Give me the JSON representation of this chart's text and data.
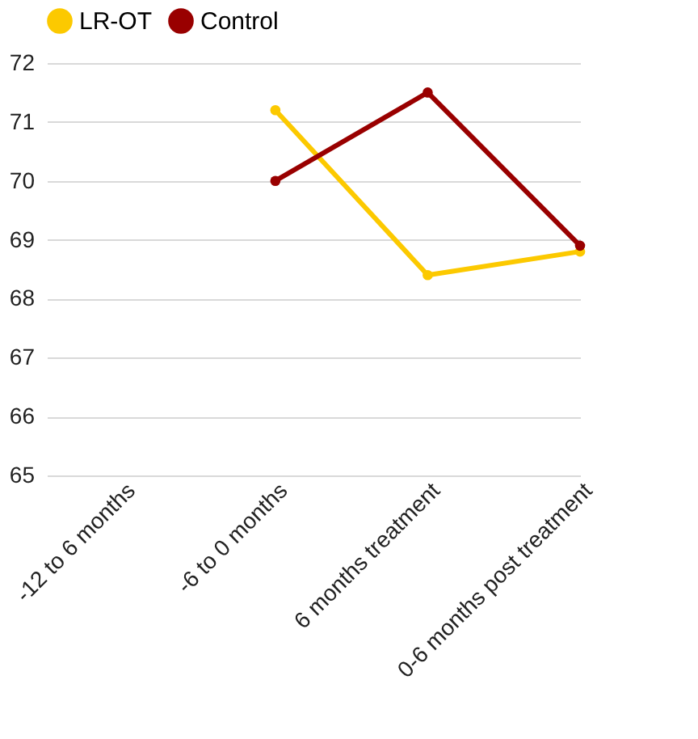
{
  "chart_data": {
    "type": "line",
    "categories": [
      "-12 to 6 months",
      "-6 to 0 months",
      "6 months treatment",
      "0-6 months post treatment"
    ],
    "series": [
      {
        "name": "LR-OT",
        "color": "#fcc900",
        "values": [
          null,
          71.2,
          68.4,
          68.8
        ]
      },
      {
        "name": "Control",
        "color": "#990000",
        "values": [
          null,
          70.0,
          71.5,
          68.9
        ]
      }
    ],
    "ylim": [
      65,
      72
    ],
    "yticks": [
      65,
      66,
      67,
      68,
      69,
      70,
      71,
      72
    ],
    "grid": "y",
    "legend": "top",
    "marker": "circle",
    "line_style": "solid"
  }
}
